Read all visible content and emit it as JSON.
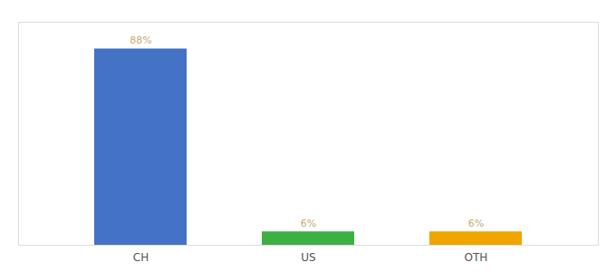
{
  "chart_data": {
    "type": "bar",
    "categories": [
      "CH",
      "US",
      "OTH"
    ],
    "values": [
      88,
      6,
      6
    ],
    "value_labels": [
      "88%",
      "6%",
      "6%"
    ],
    "colors": [
      "#4472c4",
      "#3cb043",
      "#f0a500"
    ],
    "ylim": [
      0,
      100
    ],
    "data_labels": true,
    "tick_labels": "x",
    "grid": false
  }
}
